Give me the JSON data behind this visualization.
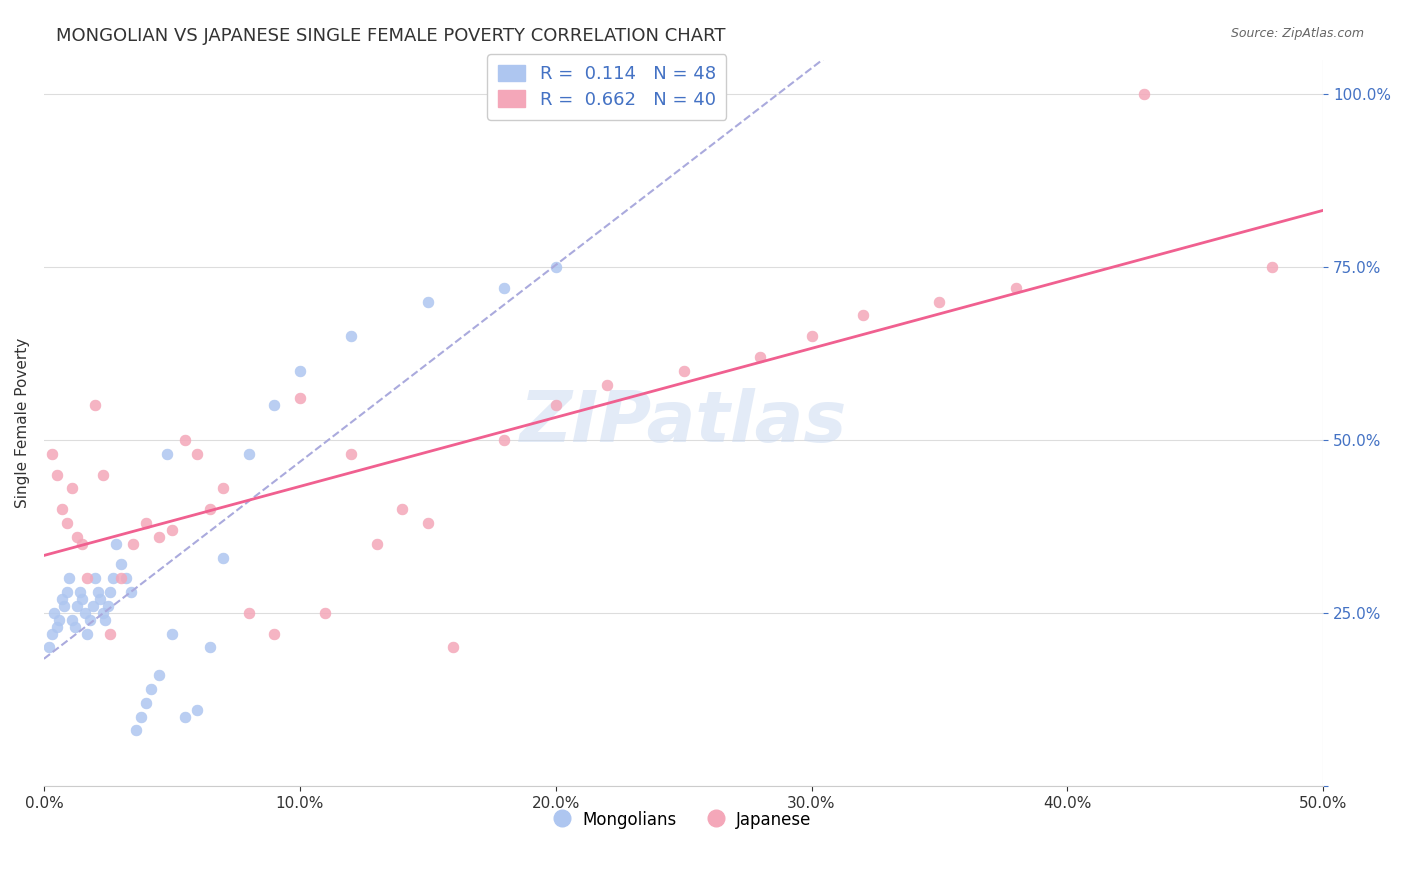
{
  "title": "MONGOLIAN VS JAPANESE SINGLE FEMALE POVERTY CORRELATION CHART",
  "source": "Source: ZipAtlas.com",
  "ylabel": "Single Female Poverty",
  "xlabel": "",
  "xlim": [
    0.0,
    0.5
  ],
  "ylim": [
    0.0,
    1.05
  ],
  "xticks": [
    0.0,
    0.1,
    0.2,
    0.3,
    0.4,
    0.5
  ],
  "yticks": [
    0.0,
    0.25,
    0.5,
    0.75,
    1.0
  ],
  "ytick_labels": [
    "",
    "25.0%",
    "50.0%",
    "75.0%",
    "100.0%"
  ],
  "xtick_labels": [
    "0.0%",
    "10.0%",
    "20.0%",
    "30.0%",
    "40.0%",
    "50.0%"
  ],
  "legend_entry1": "R =  0.114   N = 48",
  "legend_entry2": "R =  0.662   N = 40",
  "mongolian_color": "#aec6f0",
  "japanese_color": "#f4a7b9",
  "mongolian_line_color": "#aaaadd",
  "japanese_line_color": "#f06090",
  "mongolian_R": 0.114,
  "japanese_R": 0.662,
  "watermark": "ZIPatlas",
  "mongolian_x": [
    0.002,
    0.003,
    0.004,
    0.005,
    0.006,
    0.007,
    0.008,
    0.009,
    0.01,
    0.011,
    0.012,
    0.013,
    0.014,
    0.015,
    0.016,
    0.017,
    0.018,
    0.019,
    0.02,
    0.021,
    0.022,
    0.023,
    0.024,
    0.025,
    0.026,
    0.027,
    0.028,
    0.03,
    0.032,
    0.034,
    0.036,
    0.038,
    0.04,
    0.042,
    0.045,
    0.048,
    0.05,
    0.055,
    0.06,
    0.065,
    0.07,
    0.08,
    0.09,
    0.1,
    0.12,
    0.15,
    0.18,
    0.2
  ],
  "mongolian_y": [
    0.2,
    0.22,
    0.25,
    0.23,
    0.24,
    0.27,
    0.26,
    0.28,
    0.3,
    0.24,
    0.23,
    0.26,
    0.28,
    0.27,
    0.25,
    0.22,
    0.24,
    0.26,
    0.3,
    0.28,
    0.27,
    0.25,
    0.24,
    0.26,
    0.28,
    0.3,
    0.35,
    0.32,
    0.3,
    0.28,
    0.08,
    0.1,
    0.12,
    0.14,
    0.16,
    0.48,
    0.22,
    0.1,
    0.11,
    0.2,
    0.33,
    0.48,
    0.55,
    0.6,
    0.65,
    0.7,
    0.72,
    0.75
  ],
  "japanese_x": [
    0.003,
    0.005,
    0.007,
    0.009,
    0.011,
    0.013,
    0.015,
    0.017,
    0.02,
    0.023,
    0.026,
    0.03,
    0.035,
    0.04,
    0.045,
    0.05,
    0.055,
    0.06,
    0.065,
    0.07,
    0.08,
    0.09,
    0.1,
    0.11,
    0.12,
    0.13,
    0.14,
    0.15,
    0.16,
    0.18,
    0.2,
    0.22,
    0.25,
    0.28,
    0.3,
    0.32,
    0.35,
    0.38,
    0.43,
    0.48
  ],
  "japanese_y": [
    0.48,
    0.45,
    0.4,
    0.38,
    0.43,
    0.36,
    0.35,
    0.3,
    0.55,
    0.45,
    0.22,
    0.3,
    0.35,
    0.38,
    0.36,
    0.37,
    0.5,
    0.48,
    0.4,
    0.43,
    0.25,
    0.22,
    0.56,
    0.25,
    0.48,
    0.35,
    0.4,
    0.38,
    0.2,
    0.5,
    0.55,
    0.58,
    0.6,
    0.62,
    0.65,
    0.68,
    0.7,
    0.72,
    1.0,
    0.75
  ]
}
